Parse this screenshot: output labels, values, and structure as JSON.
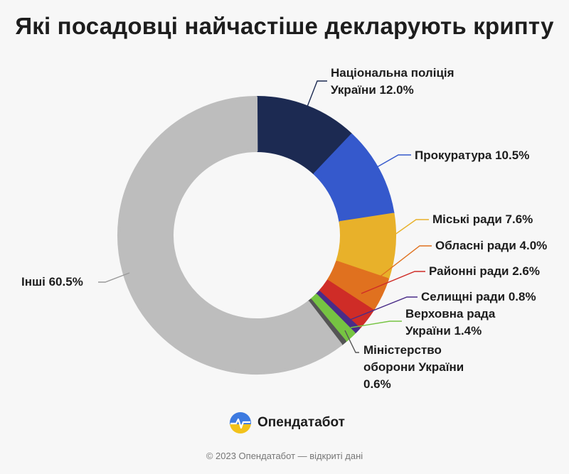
{
  "chart_data": {
    "type": "pie",
    "title": "Які посадовці найчастіше декларують крипту",
    "slices": [
      {
        "name": "Національна поліція України",
        "value": 12.0,
        "color": "#1c2a52",
        "label_lines": [
          "Національна поліція",
          "України 12.0%"
        ]
      },
      {
        "name": "Прокуратура",
        "value": 10.5,
        "color": "#3559cc",
        "label_lines": [
          "Прокуратура 10.5%"
        ]
      },
      {
        "name": "Міські ради",
        "value": 7.6,
        "color": "#e8b12a",
        "label_lines": [
          "Міські ради 7.6%"
        ]
      },
      {
        "name": "Обласні ради",
        "value": 4.0,
        "color": "#e0711f",
        "label_lines": [
          "Обласні ради 4.0%"
        ]
      },
      {
        "name": "Районні ради",
        "value": 2.6,
        "color": "#cf2c27",
        "label_lines": [
          "Районні ради 2.6%"
        ]
      },
      {
        "name": "Селищні ради",
        "value": 0.8,
        "color": "#4a2c88",
        "label_lines": [
          "Селищні ради 0.8%"
        ]
      },
      {
        "name": "Верховна рада України",
        "value": 1.4,
        "color": "#76c442",
        "label_lines": [
          "Верховна рада",
          "України 1.4%"
        ]
      },
      {
        "name": "Міністерство оборони України",
        "value": 0.6,
        "color": "#555555",
        "label_lines": [
          "Міністерство",
          "оборони України",
          "0.6%"
        ]
      },
      {
        "name": "Інші",
        "value": 60.5,
        "color": "#bdbdbd",
        "label_lines": [
          "Інші 60.5%"
        ]
      }
    ]
  },
  "brand": {
    "name": "Опендатабот",
    "icon": "opendatabot-logo-icon"
  },
  "footer": "© 2023 Опендатабот — відкриті дані"
}
